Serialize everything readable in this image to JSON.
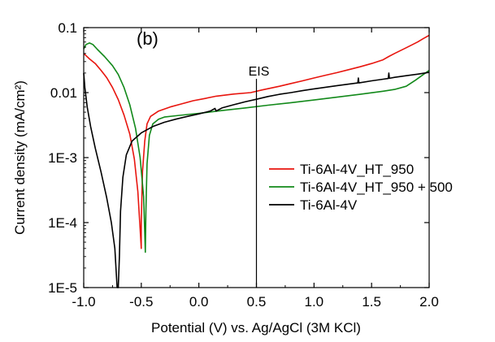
{
  "chart_data": {
    "type": "line",
    "panel_label": "(b)",
    "xlabel": "Potential (V) vs. Ag/AgCl (3M KCl)",
    "ylabel": "Current density (mA/cm²)",
    "xlim": [
      -1.0,
      2.0
    ],
    "ylim": [
      1e-05,
      0.1
    ],
    "y_scale": "log",
    "grid": false,
    "legend_position": "right",
    "x_ticks": [
      -1.0,
      -0.5,
      0.0,
      0.5,
      1.0,
      1.5,
      2.0
    ],
    "x_tick_labels": [
      "-1.0",
      "-0.5",
      "0.0",
      "0.5",
      "1.0",
      "1.5",
      "2.0"
    ],
    "y_ticks": [
      1e-05,
      0.0001,
      0.001,
      0.01,
      0.1
    ],
    "y_tick_labels": [
      "1E-5",
      "1E-4",
      "1E-3",
      "0.01",
      "0.1"
    ],
    "annotations": [
      {
        "text": "EIS",
        "x": 0.5,
        "type": "vertical-line"
      }
    ],
    "series": [
      {
        "name": "Ti-6Al-4V_HT_950",
        "color": "#e8150e",
        "points": [
          [
            -1.0,
            0.04
          ],
          [
            -0.95,
            0.033
          ],
          [
            -0.9,
            0.028
          ],
          [
            -0.85,
            0.022
          ],
          [
            -0.8,
            0.017
          ],
          [
            -0.75,
            0.012
          ],
          [
            -0.7,
            0.0078
          ],
          [
            -0.65,
            0.0045
          ],
          [
            -0.6,
            0.0023
          ],
          [
            -0.56,
            0.00095
          ],
          [
            -0.53,
            0.0003
          ],
          [
            -0.51,
            8e-05
          ],
          [
            -0.5,
            4e-05
          ],
          [
            -0.5,
            0.0001
          ],
          [
            -0.49,
            0.0006
          ],
          [
            -0.47,
            0.0018
          ],
          [
            -0.45,
            0.0033
          ],
          [
            -0.42,
            0.0043
          ],
          [
            -0.35,
            0.0052
          ],
          [
            -0.25,
            0.006
          ],
          [
            -0.15,
            0.0067
          ],
          [
            -0.05,
            0.0075
          ],
          [
            0.05,
            0.0081
          ],
          [
            0.15,
            0.0088
          ],
          [
            0.3,
            0.0095
          ],
          [
            0.45,
            0.01
          ],
          [
            0.55,
            0.011
          ],
          [
            0.7,
            0.0125
          ],
          [
            0.8,
            0.0138
          ],
          [
            0.9,
            0.0152
          ],
          [
            1.0,
            0.0168
          ],
          [
            1.1,
            0.0185
          ],
          [
            1.2,
            0.0203
          ],
          [
            1.3,
            0.0225
          ],
          [
            1.4,
            0.025
          ],
          [
            1.5,
            0.028
          ],
          [
            1.6,
            0.032
          ],
          [
            1.65,
            0.036
          ],
          [
            1.7,
            0.04
          ],
          [
            1.8,
            0.049
          ],
          [
            1.9,
            0.06
          ],
          [
            1.95,
            0.068
          ],
          [
            2.0,
            0.076
          ]
        ]
      },
      {
        "name": "Ti-6Al-4V_HT_950 + 500",
        "color": "#12891a",
        "points": [
          [
            -1.0,
            0.047
          ],
          [
            -0.98,
            0.055
          ],
          [
            -0.95,
            0.058
          ],
          [
            -0.92,
            0.055
          ],
          [
            -0.88,
            0.046
          ],
          [
            -0.82,
            0.036
          ],
          [
            -0.75,
            0.026
          ],
          [
            -0.7,
            0.019
          ],
          [
            -0.65,
            0.012
          ],
          [
            -0.6,
            0.0065
          ],
          [
            -0.55,
            0.0028
          ],
          [
            -0.51,
            0.001
          ],
          [
            -0.48,
            0.00025
          ],
          [
            -0.465,
            3.5e-05
          ],
          [
            -0.46,
            0.00015
          ],
          [
            -0.45,
            0.0008
          ],
          [
            -0.43,
            0.0022
          ],
          [
            -0.4,
            0.0033
          ],
          [
            -0.35,
            0.0039
          ],
          [
            -0.3,
            0.0042
          ],
          [
            -0.2,
            0.0044
          ],
          [
            -0.1,
            0.0046
          ],
          [
            0.0,
            0.0048
          ],
          [
            0.2,
            0.0053
          ],
          [
            0.4,
            0.0058
          ],
          [
            0.6,
            0.0064
          ],
          [
            0.8,
            0.007
          ],
          [
            1.0,
            0.0077
          ],
          [
            1.2,
            0.0085
          ],
          [
            1.4,
            0.0094
          ],
          [
            1.6,
            0.0105
          ],
          [
            1.7,
            0.0112
          ],
          [
            1.8,
            0.0125
          ],
          [
            1.88,
            0.0155
          ],
          [
            1.95,
            0.019
          ],
          [
            2.0,
            0.022
          ]
        ]
      },
      {
        "name": "Ti-6Al-4V",
        "color": "#000000",
        "points": [
          [
            -1.0,
            0.02
          ],
          [
            -0.99,
            0.012
          ],
          [
            -0.97,
            0.006
          ],
          [
            -0.94,
            0.003
          ],
          [
            -0.9,
            0.0014
          ],
          [
            -0.85,
            0.0006
          ],
          [
            -0.8,
            0.00024
          ],
          [
            -0.76,
            0.0001
          ],
          [
            -0.73,
            4e-05
          ],
          [
            -0.71,
            1e-05
          ],
          [
            -0.7,
            1e-05
          ],
          [
            -0.69,
            3e-05
          ],
          [
            -0.68,
            0.00015
          ],
          [
            -0.66,
            0.0005
          ],
          [
            -0.63,
            0.0011
          ],
          [
            -0.58,
            0.0018
          ],
          [
            -0.5,
            0.0024
          ],
          [
            -0.4,
            0.003
          ],
          [
            -0.3,
            0.0035
          ],
          [
            -0.2,
            0.0039
          ],
          [
            -0.1,
            0.0043
          ],
          [
            0.0,
            0.0047
          ],
          [
            0.1,
            0.0052
          ],
          [
            0.14,
            0.0057
          ],
          [
            0.15,
            0.0052
          ],
          [
            0.2,
            0.0058
          ],
          [
            0.3,
            0.0065
          ],
          [
            0.4,
            0.0072
          ],
          [
            0.5,
            0.0079
          ],
          [
            0.6,
            0.0087
          ],
          [
            0.7,
            0.0094
          ],
          [
            0.8,
            0.01
          ],
          [
            0.9,
            0.0107
          ],
          [
            1.0,
            0.0114
          ],
          [
            1.1,
            0.0121
          ],
          [
            1.2,
            0.0128
          ],
          [
            1.3,
            0.0135
          ],
          [
            1.38,
            0.0141
          ],
          [
            1.385,
            0.0168
          ],
          [
            1.39,
            0.0141
          ],
          [
            1.5,
            0.0152
          ],
          [
            1.6,
            0.0161
          ],
          [
            1.645,
            0.0165
          ],
          [
            1.65,
            0.02
          ],
          [
            1.655,
            0.0166
          ],
          [
            1.7,
            0.0172
          ],
          [
            1.8,
            0.0182
          ],
          [
            1.9,
            0.0192
          ],
          [
            2.0,
            0.0205
          ]
        ]
      }
    ]
  }
}
